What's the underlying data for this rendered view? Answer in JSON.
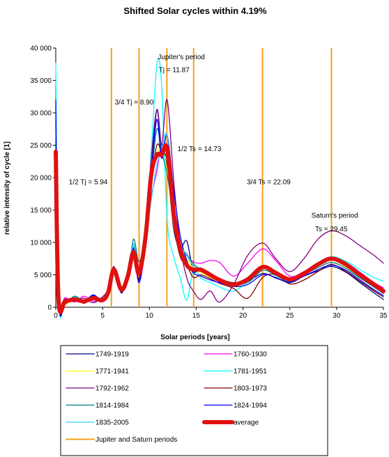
{
  "chart_data": {
    "type": "line",
    "title": "Shifted Solar cycles within 4.19%",
    "xlabel": "Solar periods [years]",
    "ylabel": "relative intensity of cycle [1]",
    "xlim": [
      0,
      35
    ],
    "ylim": [
      0,
      40000
    ],
    "x_ticks": [
      "0",
      "5",
      "10",
      "15",
      "20",
      "25",
      "30",
      "35"
    ],
    "y_ticks": [
      "0",
      "5 000",
      "10 000",
      "15 000",
      "20 000",
      "25 000",
      "30 000",
      "35 000",
      "40 000"
    ],
    "grid": "none",
    "legend_position": "bottom",
    "periods": {
      "name": "Jupiter and Saturn periods",
      "color": "#f5a01a",
      "values": [
        5.94,
        8.9,
        11.87,
        14.73,
        22.09,
        29.45
      ]
    },
    "annotations": [
      {
        "text": "Jupiter's period",
        "x": 10.9,
        "y": 38300
      },
      {
        "text": "Tj = 11.87",
        "x": 11.0,
        "y": 36300
      },
      {
        "text": "3/4 Tj = 8.90",
        "x": 6.3,
        "y": 31300
      },
      {
        "text": "1/2 Ts = 14.73",
        "x": 13.0,
        "y": 24100
      },
      {
        "text": "1/2 Tj = 5.94",
        "x": 1.4,
        "y": 19000
      },
      {
        "text": "3/4 Ts = 22.09",
        "x": 20.4,
        "y": 19000
      },
      {
        "text": "Saturn's period",
        "x": 27.3,
        "y": 13800
      },
      {
        "text": "Ts = 29.45",
        "x": 27.7,
        "y": 11700
      }
    ],
    "series": [
      {
        "name": "1749-1919",
        "color": "#000080",
        "width": 1.3,
        "x": [
          0,
          0.3,
          1,
          2,
          3,
          4,
          5,
          5.6,
          6.2,
          7,
          7.7,
          8.3,
          8.9,
          9.6,
          10.2,
          10.8,
          11.3,
          11.9,
          12.6,
          13.3,
          14,
          14.7,
          15.5,
          16.5,
          17.5,
          19,
          20.5,
          22.1,
          23.5,
          25,
          26.5,
          28,
          29.45,
          31,
          32.5,
          34,
          35
        ],
        "y": [
          31000,
          1200,
          600,
          1500,
          700,
          1800,
          1200,
          2800,
          6000,
          2200,
          5200,
          8800,
          4300,
          12000,
          21000,
          30500,
          24500,
          21500,
          12000,
          9200,
          10200,
          5600,
          6000,
          5000,
          4200,
          3600,
          4000,
          5200,
          4500,
          3900,
          4800,
          5600,
          6300,
          5400,
          3800,
          2200,
          1200
        ]
      },
      {
        "name": "1760-1930",
        "color": "#ff00ff",
        "width": 1.3,
        "x": [
          0,
          0.3,
          1,
          2,
          3,
          4,
          5,
          5.6,
          6.2,
          7,
          7.7,
          8.3,
          8.9,
          9.6,
          10.2,
          10.8,
          11.3,
          11.9,
          12.6,
          13.3,
          14,
          14.7,
          15.5,
          16.5,
          17.5,
          19,
          20.5,
          22.1,
          23.5,
          25,
          26.5,
          28,
          29.45,
          31,
          32.5,
          34,
          35
        ],
        "y": [
          23000,
          900,
          1500,
          800,
          1700,
          900,
          1400,
          2300,
          5600,
          3000,
          4700,
          7900,
          6000,
          10500,
          17000,
          21000,
          25000,
          23000,
          13800,
          8200,
          8000,
          7000,
          6800,
          7200,
          6900,
          4800,
          6800,
          9000,
          7200,
          4800,
          5500,
          6800,
          7800,
          6900,
          5400,
          3800,
          3000
        ]
      },
      {
        "name": "1771-1941",
        "color": "#ffff00",
        "width": 1.3,
        "x": [
          0,
          0.3,
          1,
          2,
          3,
          4,
          5,
          5.6,
          6.2,
          7,
          7.7,
          8.3,
          8.9,
          9.6,
          10.2,
          10.8,
          11.3,
          11.9,
          12.6,
          13.3,
          14,
          14.7,
          15.5,
          16.5,
          17.5,
          19,
          20.5,
          22.1,
          23.5,
          25,
          26.5,
          28,
          29.45,
          31,
          32.5,
          34,
          35
        ],
        "y": [
          20000,
          1100,
          400,
          1200,
          900,
          1500,
          900,
          2600,
          5200,
          2600,
          4300,
          8200,
          5500,
          10000,
          19000,
          23500,
          24500,
          21000,
          12500,
          8700,
          7500,
          6000,
          5400,
          4600,
          4000,
          3300,
          4600,
          6300,
          5600,
          4200,
          5100,
          6400,
          7300,
          6200,
          4600,
          3100,
          2300
        ]
      },
      {
        "name": "1781-1951",
        "color": "#00ffff",
        "width": 1.3,
        "x": [
          0,
          0.3,
          1,
          2,
          3,
          4,
          5,
          5.6,
          6.2,
          7,
          7.7,
          8.3,
          8.9,
          9.6,
          10.2,
          10.8,
          11.3,
          11.9,
          12.6,
          13.3,
          14,
          14.7,
          15.5,
          16.5,
          17.5,
          19,
          20.5,
          22.1,
          23.5,
          25,
          26.5,
          28,
          29.45,
          31,
          32.5,
          34,
          35
        ],
        "y": [
          37700,
          1300,
          700,
          1600,
          800,
          1300,
          1000,
          2400,
          5800,
          3200,
          4600,
          9500,
          5400,
          11000,
          24000,
          37500,
          34500,
          13500,
          7800,
          4500,
          1100,
          5800,
          4500,
          3800,
          3100,
          2500,
          4000,
          6100,
          5300,
          4100,
          5200,
          6800,
          7800,
          7100,
          5800,
          4600,
          4000
        ]
      },
      {
        "name": "1792-1962",
        "color": "#800080",
        "width": 1.3,
        "x": [
          0,
          0.3,
          1,
          2,
          3,
          4,
          5,
          5.6,
          6.2,
          7,
          7.7,
          8.3,
          8.9,
          9.6,
          10.2,
          10.8,
          11.3,
          11.9,
          12.6,
          13.3,
          14,
          14.7,
          15.5,
          16.5,
          17.5,
          19,
          20.5,
          22.1,
          23.5,
          25,
          26.5,
          28,
          29.45,
          31,
          32.5,
          34,
          35
        ],
        "y": [
          28000,
          800,
          1300,
          900,
          1400,
          700,
          1600,
          2900,
          6300,
          2500,
          5100,
          9200,
          4000,
          12500,
          23000,
          30500,
          25000,
          32000,
          19500,
          9500,
          4500,
          2500,
          1200,
          2500,
          800,
          3500,
          8000,
          9900,
          7500,
          5500,
          7500,
          10500,
          11800,
          11000,
          9500,
          8000,
          6800
        ]
      },
      {
        "name": "1803-1973",
        "color": "#800000",
        "width": 1.3,
        "x": [
          0,
          0.3,
          1,
          2,
          3,
          4,
          5,
          5.6,
          6.2,
          7,
          7.7,
          8.3,
          8.9,
          9.6,
          10.2,
          10.8,
          11.3,
          11.9,
          12.6,
          13.3,
          14,
          14.7,
          15.5,
          16.5,
          17.5,
          19,
          20.5,
          22.1,
          23.5,
          25,
          26.5,
          28,
          29.45,
          31,
          32.5,
          34,
          35
        ],
        "y": [
          24000,
          1000,
          800,
          1400,
          600,
          1500,
          1100,
          2700,
          6100,
          2800,
          4900,
          7600,
          4500,
          10500,
          19500,
          25000,
          24000,
          22500,
          12800,
          7800,
          6500,
          4600,
          5000,
          4400,
          3700,
          2900,
          1400,
          4600,
          5000,
          3600,
          4200,
          5500,
          6600,
          5500,
          4000,
          2500,
          1600
        ]
      },
      {
        "name": "1814-1984",
        "color": "#008080",
        "width": 1.3,
        "x": [
          0,
          0.3,
          1,
          2,
          3,
          4,
          5,
          5.6,
          6.2,
          7,
          7.7,
          8.3,
          8.9,
          9.6,
          10.2,
          10.8,
          11.3,
          11.9,
          12.6,
          13.3,
          14,
          14.7,
          15.5,
          16.5,
          17.5,
          19,
          20.5,
          22.1,
          23.5,
          25,
          26.5,
          28,
          29.45,
          31,
          32.5,
          34,
          35
        ],
        "y": [
          23000,
          1400,
          500,
          1700,
          1000,
          1600,
          1300,
          2500,
          5500,
          2900,
          4400,
          10500,
          7000,
          11500,
          20000,
          27500,
          24000,
          20500,
          14000,
          9500,
          8200,
          6700,
          5800,
          4800,
          4300,
          3800,
          3800,
          5700,
          4900,
          4000,
          5000,
          6100,
          6900,
          6000,
          4500,
          3100,
          2100
        ]
      },
      {
        "name": "1824-1994",
        "color": "#0000ff",
        "width": 1.3,
        "x": [
          0,
          0.3,
          1,
          2,
          3,
          4,
          5,
          5.6,
          6.2,
          7,
          7.7,
          8.3,
          8.9,
          9.6,
          10.2,
          10.8,
          11.3,
          11.9,
          12.6,
          13.3,
          14,
          14.7,
          15.5,
          16.5,
          17.5,
          19,
          20.5,
          22.1,
          23.5,
          25,
          26.5,
          28,
          29.45,
          31,
          32.5,
          34,
          35
        ],
        "y": [
          32000,
          1100,
          600,
          1300,
          800,
          1900,
          900,
          2200,
          5900,
          2400,
          5500,
          9000,
          3800,
          10000,
          20500,
          29000,
          23000,
          26500,
          18000,
          11000,
          7200,
          5300,
          4800,
          4200,
          3800,
          3200,
          3500,
          5000,
          4600,
          3800,
          4800,
          5800,
          6500,
          5700,
          4200,
          2700,
          1800
        ]
      },
      {
        "name": "1835-2005",
        "color": "#33ccff",
        "width": 1.3,
        "x": [
          0,
          0.3,
          1,
          2,
          3,
          4,
          5,
          5.6,
          6.2,
          7,
          7.7,
          8.3,
          8.9,
          9.6,
          10.2,
          10.8,
          11.3,
          11.9,
          12.6,
          13.3,
          14,
          14.7,
          15.5,
          16.5,
          17.5,
          19,
          20.5,
          22.1,
          23.5,
          25,
          26.5,
          28,
          29.45,
          31,
          32.5,
          34,
          35
        ],
        "y": [
          21000,
          1200,
          700,
          1500,
          1100,
          1400,
          1200,
          2800,
          5700,
          3100,
          4700,
          9800,
          6200,
          11000,
          16500,
          22000,
          24000,
          26500,
          15000,
          9800,
          8000,
          6400,
          5900,
          4900,
          4100,
          3500,
          4200,
          6000,
          5100,
          4100,
          5300,
          6700,
          7500,
          6600,
          5000,
          3600,
          2700
        ]
      },
      {
        "name": "average",
        "color": "#e01010",
        "width": 6,
        "x": [
          0,
          0.3,
          1,
          2,
          3,
          4,
          5,
          5.6,
          6.2,
          7,
          7.7,
          8.3,
          8.9,
          9.6,
          10.2,
          10.8,
          11.3,
          11.9,
          12.6,
          13.3,
          14,
          14.7,
          15.5,
          16.5,
          17.5,
          19,
          20.5,
          22.1,
          23.5,
          25,
          26.5,
          28,
          29.45,
          31,
          32.5,
          34,
          35
        ],
        "y": [
          24000,
          1000,
          900,
          1200,
          900,
          1400,
          1100,
          2300,
          5800,
          2700,
          4800,
          8500,
          5200,
          11000,
          20500,
          23500,
          23500,
          24500,
          14500,
          9000,
          6500,
          5800,
          5800,
          5000,
          4200,
          3500,
          4300,
          6200,
          5300,
          4300,
          5200,
          6600,
          7500,
          6600,
          5000,
          3500,
          2500
        ]
      }
    ]
  },
  "legend": {
    "items": [
      {
        "label": "1749-1919",
        "color": "#000080",
        "width": 1.3
      },
      {
        "label": "1760-1930",
        "color": "#ff00ff",
        "width": 1.3
      },
      {
        "label": "1771-1941",
        "color": "#ffff00",
        "width": 1.3
      },
      {
        "label": "1781-1951",
        "color": "#00ffff",
        "width": 1.3
      },
      {
        "label": "1792-1962",
        "color": "#800080",
        "width": 1.3
      },
      {
        "label": "1803-1973",
        "color": "#800000",
        "width": 1.3
      },
      {
        "label": "1814-1984",
        "color": "#008080",
        "width": 1.3
      },
      {
        "label": "1824-1994",
        "color": "#0000ff",
        "width": 1.3
      },
      {
        "label": "1835-2005",
        "color": "#33ccff",
        "width": 1.3
      },
      {
        "label": "average",
        "color": "#e01010",
        "width": 6
      },
      {
        "label": "Jupiter and Saturn periods",
        "color": "#f5a01a",
        "width": 2
      }
    ]
  }
}
